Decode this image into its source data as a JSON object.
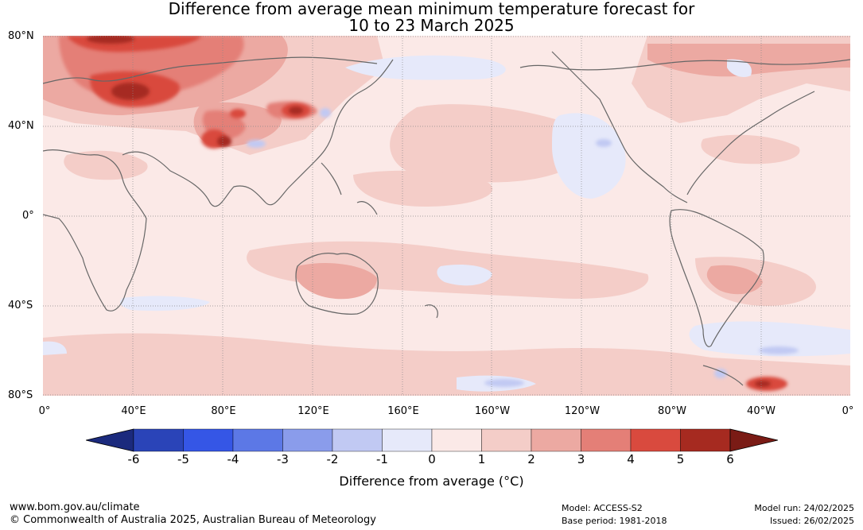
{
  "title": {
    "line1": "Difference from average mean minimum temperature forecast for",
    "line2": "10 to 23 March 2025"
  },
  "map": {
    "lat_labels": [
      "80°N",
      "40°N",
      "0°",
      "40°S",
      "80°S"
    ],
    "lon_labels": [
      "0°",
      "40°E",
      "80°E",
      "120°E",
      "160°E",
      "160°W",
      "120°W",
      "80°W",
      "40°W",
      "0°"
    ],
    "colors": {
      "land_outline": "#666666",
      "grid": "#888888"
    }
  },
  "colorbar": {
    "ticks": [
      "-6",
      "-5",
      "-4",
      "-3",
      "-2",
      "-1",
      "0",
      "1",
      "2",
      "3",
      "4",
      "5",
      "6"
    ],
    "colors": [
      "#1b2a7d",
      "#2a44b8",
      "#3556e6",
      "#5c78e6",
      "#8a9ceb",
      "#c1c9f3",
      "#e6e9fa",
      "#fbe9e7",
      "#f4cdc8",
      "#eca9a2",
      "#e47f77",
      "#d94a3e",
      "#a62a20",
      "#7a1b15"
    ],
    "label": "Difference from average (°C)"
  },
  "footer": {
    "url": "www.bom.gov.au/climate",
    "copyright": "© Commonwealth of Australia 2025, Australian Bureau of Meteorology",
    "model": "Model: ACCESS-S2",
    "base_period": "Base period: 1981-2018",
    "model_run": "Model run: 24/02/2025",
    "issued": "Issued: 26/02/2025"
  }
}
